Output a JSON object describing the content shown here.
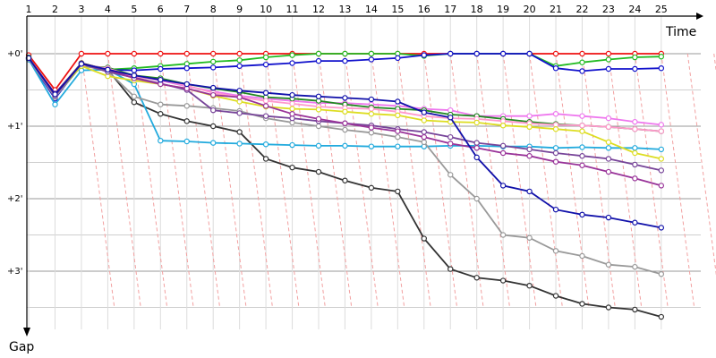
{
  "chart_data": {
    "type": "line",
    "title": "",
    "xlabel": "Time",
    "ylabel": "Gap",
    "x": [
      1,
      2,
      3,
      4,
      5,
      6,
      7,
      8,
      9,
      10,
      11,
      12,
      13,
      14,
      15,
      16,
      17,
      18,
      19,
      20,
      21,
      22,
      23,
      24,
      25
    ],
    "xlim": [
      0.93,
      26.5
    ],
    "ylim": [
      0,
      3.5
    ],
    "y_ticks": [
      {
        "value": 0,
        "label": "+0'"
      },
      {
        "value": 1,
        "label": "+1'"
      },
      {
        "value": 2,
        "label": "+2'"
      },
      {
        "value": 3,
        "label": "+3'"
      }
    ],
    "grid": true,
    "legend": "none",
    "series": [
      {
        "color": "#ee1111",
        "values": [
          0.02,
          0.5,
          0.0,
          0.0,
          0.0,
          0.0,
          0.0,
          0.0,
          0.0,
          0.0,
          0.0,
          0.0,
          0.0,
          0.0,
          0.0,
          0.0,
          0.0,
          0.0,
          0.0,
          0.0,
          0.0,
          0.0,
          0.0,
          0.0,
          0.0
        ]
      },
      {
        "color": "#22bb22",
        "values": [
          0.05,
          0.6,
          0.16,
          0.22,
          0.2,
          0.17,
          0.14,
          0.11,
          0.09,
          0.05,
          0.02,
          0.0,
          0.0,
          0.0,
          0.0,
          0.03,
          0.0,
          0.0,
          0.0,
          0.0,
          0.17,
          0.12,
          0.08,
          0.05,
          0.04
        ]
      },
      {
        "color": "#1111cc",
        "values": [
          0.08,
          0.62,
          0.14,
          0.22,
          0.23,
          0.21,
          0.2,
          0.19,
          0.17,
          0.15,
          0.13,
          0.1,
          0.1,
          0.08,
          0.06,
          0.02,
          0.0,
          0.0,
          0.0,
          0.0,
          0.2,
          0.24,
          0.21,
          0.21,
          0.2
        ]
      },
      {
        "color": "#333333",
        "values": [
          0.06,
          0.55,
          0.13,
          0.22,
          0.67,
          0.83,
          0.93,
          1.0,
          1.08,
          1.45,
          1.57,
          1.63,
          1.75,
          1.85,
          1.9,
          2.55,
          2.97,
          3.09,
          3.13,
          3.2,
          3.34,
          3.45,
          3.5,
          3.53,
          3.63
        ]
      },
      {
        "color": "#22aadd",
        "values": [
          0.08,
          0.7,
          0.23,
          0.22,
          0.42,
          1.2,
          1.21,
          1.23,
          1.24,
          1.25,
          1.26,
          1.27,
          1.27,
          1.28,
          1.28,
          1.28,
          1.27,
          1.27,
          1.28,
          1.28,
          1.3,
          1.29,
          1.3,
          1.3,
          1.32
        ]
      },
      {
        "color": "#999999",
        "values": [
          0.07,
          0.6,
          0.16,
          0.24,
          0.59,
          0.7,
          0.72,
          0.75,
          0.79,
          0.89,
          0.95,
          1.0,
          1.05,
          1.09,
          1.15,
          1.22,
          1.67,
          2.0,
          2.5,
          2.54,
          2.72,
          2.79,
          2.91,
          2.94,
          3.04
        ]
      },
      {
        "color": "#ee77ee",
        "values": [
          0.06,
          0.58,
          0.15,
          0.2,
          0.31,
          0.37,
          0.45,
          0.52,
          0.58,
          0.62,
          0.65,
          0.68,
          0.68,
          0.7,
          0.72,
          0.76,
          0.78,
          0.86,
          0.86,
          0.86,
          0.83,
          0.86,
          0.89,
          0.94,
          0.98
        ]
      },
      {
        "color": "#228822",
        "values": [
          0.06,
          0.57,
          0.17,
          0.19,
          0.3,
          0.34,
          0.42,
          0.48,
          0.53,
          0.6,
          0.62,
          0.65,
          0.7,
          0.74,
          0.76,
          0.78,
          0.84,
          0.86,
          0.9,
          0.94,
          0.97,
          0.99,
          1.01,
          1.04,
          1.07
        ]
      },
      {
        "color": "#ff99cc",
        "values": [
          0.06,
          0.57,
          0.16,
          0.2,
          0.32,
          0.36,
          0.44,
          0.54,
          0.6,
          0.65,
          0.69,
          0.73,
          0.75,
          0.76,
          0.8,
          0.86,
          0.89,
          0.9,
          0.93,
          0.96,
          0.98,
          0.99,
          1.01,
          1.04,
          1.07
        ]
      },
      {
        "color": "#dddd22",
        "values": [
          0.06,
          0.56,
          0.17,
          0.31,
          0.37,
          0.42,
          0.48,
          0.58,
          0.66,
          0.73,
          0.76,
          0.77,
          0.8,
          0.83,
          0.85,
          0.92,
          0.94,
          0.95,
          0.99,
          1.01,
          1.04,
          1.07,
          1.22,
          1.37,
          1.45
        ]
      },
      {
        "color": "#774499",
        "values": [
          0.06,
          0.58,
          0.14,
          0.25,
          0.33,
          0.41,
          0.5,
          0.78,
          0.82,
          0.86,
          0.89,
          0.93,
          0.96,
          0.99,
          1.04,
          1.08,
          1.15,
          1.23,
          1.27,
          1.32,
          1.37,
          1.41,
          1.45,
          1.53,
          1.61
        ]
      },
      {
        "color": "#993399",
        "values": [
          0.06,
          0.55,
          0.14,
          0.22,
          0.34,
          0.42,
          0.48,
          0.57,
          0.6,
          0.72,
          0.83,
          0.9,
          0.96,
          1.02,
          1.07,
          1.15,
          1.24,
          1.3,
          1.37,
          1.41,
          1.49,
          1.54,
          1.63,
          1.72,
          1.82
        ]
      },
      {
        "color": "#1111aa",
        "values": [
          0.06,
          0.56,
          0.14,
          0.22,
          0.3,
          0.36,
          0.42,
          0.47,
          0.51,
          0.54,
          0.57,
          0.59,
          0.61,
          0.63,
          0.66,
          0.81,
          0.88,
          1.43,
          1.82,
          1.9,
          2.15,
          2.22,
          2.26,
          2.33,
          2.4
        ]
      }
    ]
  }
}
